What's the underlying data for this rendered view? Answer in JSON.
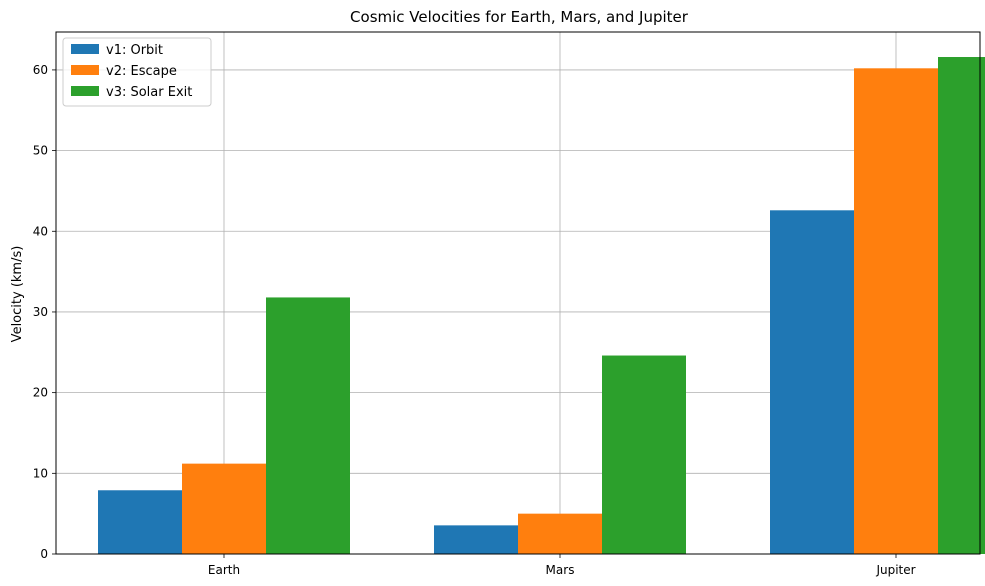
{
  "chart_data": {
    "type": "bar",
    "title": "Cosmic Velocities for Earth, Mars, and Jupiter",
    "xlabel": "",
    "ylabel": "Velocity (km/s)",
    "categories": [
      "Earth",
      "Mars",
      "Jupiter"
    ],
    "series": [
      {
        "name": "v1: Orbit",
        "color": "#1f77b4",
        "values": [
          7.9,
          3.55,
          42.6
        ]
      },
      {
        "name": "v2: Escape",
        "color": "#ff7f0e",
        "values": [
          11.2,
          5.0,
          60.2
        ]
      },
      {
        "name": "v3: Solar Exit",
        "color": "#2ca02c",
        "values": [
          31.8,
          24.6,
          61.6
        ]
      }
    ],
    "ylim": [
      0,
      64.7
    ],
    "yticks": [
      0,
      10,
      20,
      30,
      40,
      50,
      60
    ],
    "grid": true,
    "legend_position": "top-left"
  }
}
